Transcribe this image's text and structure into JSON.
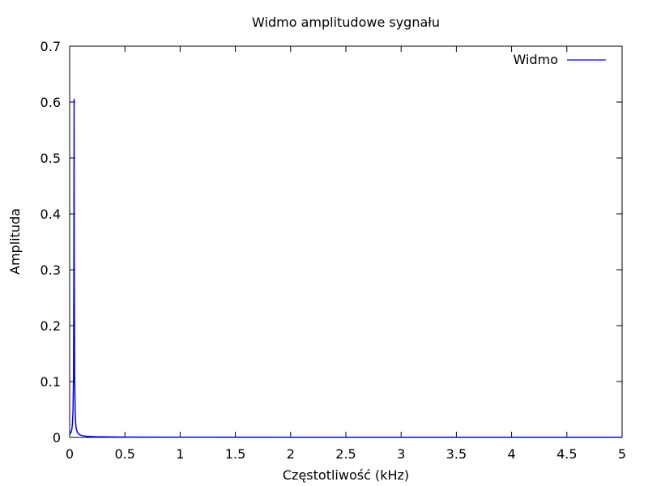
{
  "chart_data": {
    "type": "line",
    "title": "Widmo amplitudowe sygnału",
    "xlabel": "Częstotliwość (kHz)",
    "ylabel": "Amplituda",
    "xlim": [
      0,
      5
    ],
    "ylim": [
      0,
      0.7
    ],
    "xticks": [
      0,
      0.5,
      1,
      1.5,
      2,
      2.5,
      3,
      3.5,
      4,
      4.5,
      5
    ],
    "xtick_labels": [
      "0",
      "0.5",
      "1",
      "1.5",
      "2",
      "2.5",
      "3",
      "3.5",
      "4",
      "4.5",
      "5"
    ],
    "yticks": [
      0,
      0.1,
      0.2,
      0.3,
      0.4,
      0.5,
      0.6,
      0.7
    ],
    "ytick_labels": [
      "0",
      "0.1",
      "0.2",
      "0.3",
      "0.4",
      "0.5",
      "0.6",
      "0.7"
    ],
    "grid": false,
    "legend_position": "top-right",
    "series": [
      {
        "name": "Widmo",
        "color": "#0000ff",
        "x": [
          0,
          0.005,
          0.01,
          0.015,
          0.02,
          0.025,
          0.03,
          0.035,
          0.038,
          0.04,
          0.042,
          0.045,
          0.05,
          0.055,
          0.06,
          0.07,
          0.08,
          0.1,
          0.12,
          0.15,
          0.2,
          0.25,
          0.3,
          0.5,
          1,
          2,
          3,
          4,
          5
        ],
        "y": [
          0.006,
          0.007,
          0.008,
          0.011,
          0.015,
          0.024,
          0.045,
          0.11,
          0.3,
          0.605,
          0.3,
          0.11,
          0.045,
          0.024,
          0.015,
          0.009,
          0.006,
          0.004,
          0.003,
          0.002,
          0.0015,
          0.001,
          0.001,
          0.0005,
          0.0003,
          0.0002,
          0.0001,
          0.0001,
          0.0001
        ]
      }
    ]
  }
}
